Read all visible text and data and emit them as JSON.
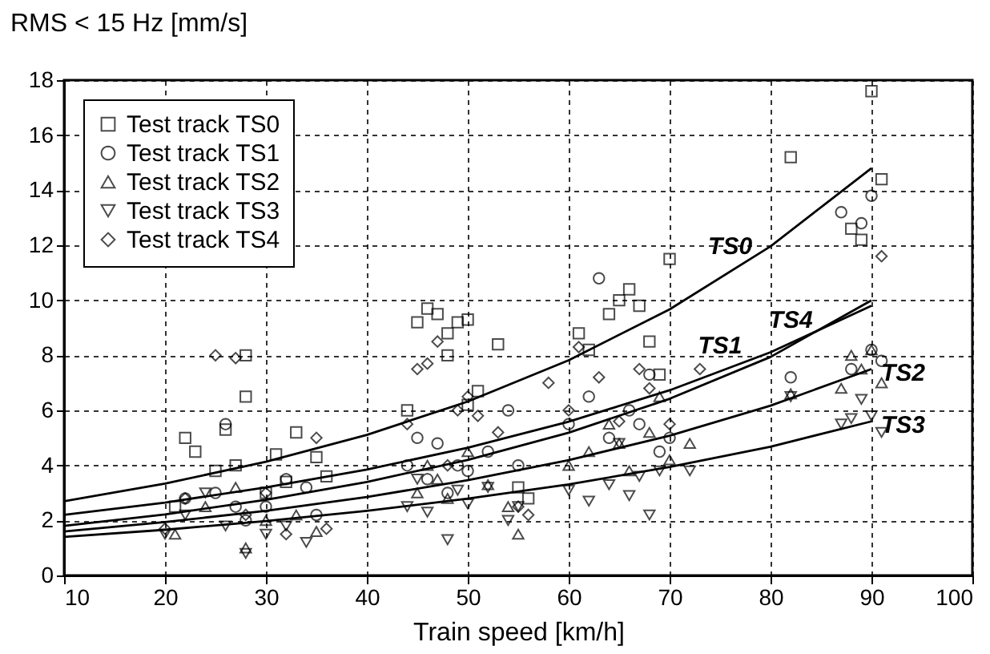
{
  "chart_data": {
    "type": "scatter",
    "xlabel": "Train speed  [km/h]",
    "ylabel": "RMS < 15 Hz [mm/s]",
    "xlim": [
      10,
      100
    ],
    "xticks": [
      10,
      20,
      30,
      40,
      50,
      60,
      70,
      80,
      90,
      100
    ],
    "ylim": [
      0,
      18
    ],
    "yticks": [
      0,
      2,
      4,
      6,
      8,
      10,
      12,
      14,
      16,
      18
    ],
    "grid": true,
    "legend": "top left",
    "series": [
      {
        "name": "Test track TS0",
        "color": "#000000",
        "marker": "square",
        "x": [
          21,
          22,
          23,
          25,
          26,
          27,
          28,
          28,
          30,
          31,
          32,
          33,
          35,
          36,
          44,
          45,
          46,
          47,
          48,
          48,
          49,
          50,
          50,
          51,
          53,
          55,
          56,
          61,
          62,
          64,
          65,
          66,
          67,
          68,
          69,
          70,
          82,
          88,
          89,
          90,
          91
        ],
        "values": [
          2.5,
          5,
          4.5,
          3.8,
          5.3,
          4,
          6.5,
          8,
          3,
          4.4,
          3.4,
          5.2,
          4.3,
          3.6,
          6,
          9.2,
          9.7,
          9.5,
          8.8,
          8,
          9.2,
          9.3,
          6.2,
          6.7,
          8.4,
          3.2,
          2.8,
          8.8,
          8.2,
          9.5,
          10,
          10.4,
          9.8,
          8.5,
          7.3,
          11.5,
          15.2,
          12.6,
          12.2,
          17.6,
          14.4
        ]
      },
      {
        "name": "Test track TS1",
        "color": "#000000",
        "marker": "circle",
        "x": [
          22,
          25,
          26,
          27,
          28,
          30,
          32,
          34,
          35,
          44,
          45,
          46,
          47,
          48,
          49,
          50,
          52,
          54,
          55,
          60,
          62,
          63,
          64,
          66,
          67,
          68,
          69,
          70,
          82,
          87,
          88,
          89,
          90,
          90,
          91
        ],
        "values": [
          2.8,
          3,
          5.5,
          2.5,
          2,
          2.5,
          3.5,
          3.2,
          2.2,
          4,
          5,
          3.5,
          4.8,
          3,
          4,
          3.8,
          4.5,
          6,
          4,
          5.5,
          6.5,
          10.8,
          5,
          6,
          5.5,
          7.3,
          4.5,
          5,
          7.2,
          13.2,
          7.5,
          12.8,
          13.8,
          8.2,
          7.8
        ]
      },
      {
        "name": "Test track TS2",
        "color": "#000000",
        "marker": "triangle",
        "x": [
          21,
          24,
          27,
          28,
          30,
          33,
          35,
          45,
          46,
          47,
          48,
          50,
          52,
          54,
          55,
          60,
          62,
          64,
          65,
          66,
          68,
          69,
          70,
          72,
          82,
          87,
          88,
          89,
          90,
          91
        ],
        "values": [
          1.5,
          2.5,
          3.2,
          1,
          2,
          2.2,
          1.6,
          3,
          4,
          3.5,
          2.8,
          4.5,
          3.3,
          2.5,
          1.5,
          4,
          4.5,
          5.5,
          4.8,
          3.8,
          5.2,
          6.5,
          4.2,
          4.8,
          6.6,
          6.8,
          8,
          7.5,
          8.2,
          7
        ]
      },
      {
        "name": "Test track TS3",
        "color": "#000000",
        "marker": "triangle-down",
        "x": [
          20,
          22,
          24,
          26,
          28,
          30,
          32,
          34,
          44,
          45,
          46,
          48,
          49,
          50,
          52,
          54,
          55,
          60,
          62,
          64,
          65,
          66,
          67,
          68,
          69,
          72,
          82,
          87,
          88,
          89,
          90,
          91
        ],
        "values": [
          1.5,
          2.2,
          3,
          1.8,
          0.8,
          1.5,
          1.8,
          1.2,
          2.5,
          3.5,
          2.3,
          1.3,
          3.1,
          2.6,
          3.2,
          2,
          2.5,
          3.1,
          2.7,
          3.3,
          4.8,
          2.9,
          3.6,
          2.2,
          3.8,
          3.8,
          6.5,
          5.5,
          5.7,
          6.4,
          5.8,
          5.2
        ]
      },
      {
        "name": "Test track TS4",
        "color": "#000000",
        "marker": "diamond",
        "x": [
          20,
          22,
          25,
          27,
          28,
          30,
          32,
          35,
          36,
          44,
          45,
          46,
          47,
          48,
          49,
          50,
          51,
          53,
          55,
          56,
          58,
          60,
          61,
          63,
          65,
          67,
          68,
          70,
          73,
          91
        ],
        "values": [
          1.7,
          2.8,
          8,
          7.9,
          2.2,
          3,
          1.5,
          5,
          1.7,
          5.5,
          7.5,
          7.7,
          8.5,
          4,
          6,
          6.5,
          5.8,
          5.2,
          2.5,
          2.2,
          7,
          6,
          8.3,
          7.2,
          5.6,
          7.5,
          6.8,
          5.5,
          7.5,
          11.6
        ]
      },
      {
        "type": "line",
        "color": "#000000",
        "x": [
          10,
          20,
          30,
          40,
          50,
          60,
          70,
          80,
          90
        ],
        "values": [
          2.7,
          3.34,
          4.13,
          5.11,
          6.32,
          7.82,
          9.67,
          11.96,
          14.8
        ]
      },
      {
        "type": "line",
        "color": "#000000",
        "x": [
          10,
          20,
          30,
          40,
          50,
          60,
          70,
          80,
          90
        ],
        "values": [
          2.2,
          2.65,
          3.2,
          3.85,
          4.64,
          5.59,
          6.73,
          8.11,
          9.8
        ]
      },
      {
        "type": "line",
        "color": "#000000",
        "x": [
          10,
          20,
          30,
          40,
          50,
          60,
          70,
          80,
          90
        ],
        "values": [
          1.6,
          1.94,
          2.35,
          2.85,
          3.46,
          4.19,
          5.08,
          6.17,
          7.5
        ]
      },
      {
        "type": "line",
        "color": "#000000",
        "x": [
          10,
          20,
          30,
          40,
          50,
          60,
          70,
          80,
          90
        ],
        "values": [
          1.4,
          1.66,
          1.98,
          2.35,
          2.79,
          3.31,
          3.94,
          4.68,
          5.6
        ]
      },
      {
        "type": "line",
        "color": "#000000",
        "x": [
          10,
          20,
          30,
          40,
          50,
          60,
          70,
          80,
          90
        ],
        "values": [
          1.8,
          2.22,
          2.75,
          3.4,
          4.2,
          5.19,
          6.42,
          7.94,
          10.0
        ]
      }
    ],
    "annotations": [
      {
        "text": "TS0",
        "x": 76,
        "y": 11.04
      },
      {
        "text": "TS1",
        "x": 75,
        "y": 7.42
      },
      {
        "text": "TS4",
        "x": 82,
        "y": 8.35
      },
      {
        "text": "TS2",
        "x": 90,
        "y": 7.5
      },
      {
        "text": "TS3",
        "x": 90,
        "y": 5.6
      }
    ]
  }
}
